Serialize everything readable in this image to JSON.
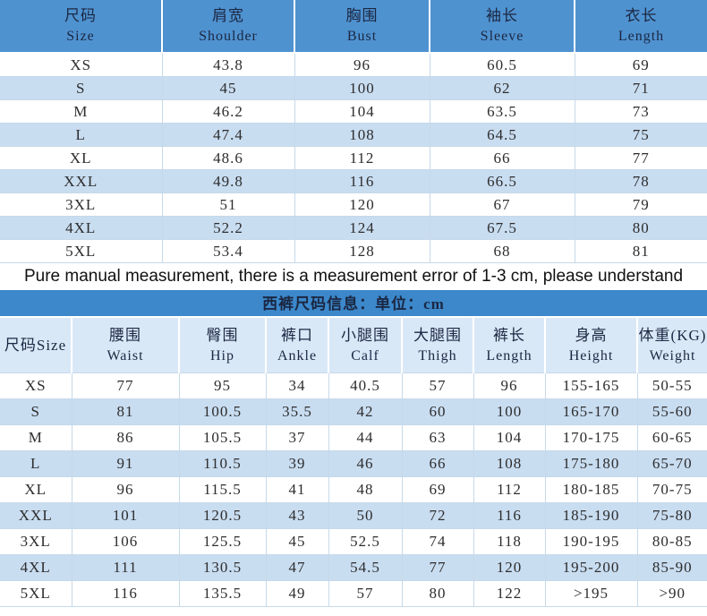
{
  "colors": {
    "header_blue": "#4f92d0",
    "row_alt_blue": "#c9ddf1",
    "title_band_blue": "#3c88cb",
    "pants_header_bg": "#d9e8f7",
    "grid_line": "#c6d9ea",
    "header_text": "#1b2742",
    "data_text": "#2d2d2d"
  },
  "notice": "Pure manual measurement, there is a measurement error of 1-3 cm, please understand",
  "chart_data": [
    {
      "type": "table",
      "name": "jacket-size-chart",
      "columns": [
        {
          "zh": "尺码",
          "en": "Size"
        },
        {
          "zh": "肩宽",
          "en": "Shoulder"
        },
        {
          "zh": "胸围",
          "en": "Bust"
        },
        {
          "zh": "袖长",
          "en": "Sleeve"
        },
        {
          "zh": "衣长",
          "en": "Length"
        }
      ],
      "rows": [
        [
          "XS",
          "43.8",
          "96",
          "60.5",
          "69"
        ],
        [
          "S",
          "45",
          "100",
          "62",
          "71"
        ],
        [
          "M",
          "46.2",
          "104",
          "63.5",
          "73"
        ],
        [
          "L",
          "47.4",
          "108",
          "64.5",
          "75"
        ],
        [
          "XL",
          "48.6",
          "112",
          "66",
          "77"
        ],
        [
          "XXL",
          "49.8",
          "116",
          "66.5",
          "78"
        ],
        [
          "3XL",
          "51",
          "120",
          "67",
          "79"
        ],
        [
          "4XL",
          "52.2",
          "124",
          "67.5",
          "80"
        ],
        [
          "5XL",
          "53.4",
          "128",
          "68",
          "81"
        ]
      ]
    },
    {
      "type": "table",
      "name": "trousers-size-chart",
      "title": "西裤尺码信息：单位：cm",
      "columns": [
        {
          "zh": "尺码Size",
          "en": ""
        },
        {
          "zh": "腰围",
          "en": "Waist"
        },
        {
          "zh": "臀围",
          "en": "Hip"
        },
        {
          "zh": "裤口",
          "en": "Ankle"
        },
        {
          "zh": "小腿围",
          "en": "Calf"
        },
        {
          "zh": "大腿围",
          "en": "Thigh"
        },
        {
          "zh": "裤长",
          "en": "Length"
        },
        {
          "zh": "身高",
          "en": "Height"
        },
        {
          "zh": "体重(KG)",
          "en": "Weight"
        }
      ],
      "rows": [
        [
          "XS",
          "77",
          "95",
          "34",
          "40.5",
          "57",
          "96",
          "155-165",
          "50-55"
        ],
        [
          "S",
          "81",
          "100.5",
          "35.5",
          "42",
          "60",
          "100",
          "165-170",
          "55-60"
        ],
        [
          "M",
          "86",
          "105.5",
          "37",
          "44",
          "63",
          "104",
          "170-175",
          "60-65"
        ],
        [
          "L",
          "91",
          "110.5",
          "39",
          "46",
          "66",
          "108",
          "175-180",
          "65-70"
        ],
        [
          "XL",
          "96",
          "115.5",
          "41",
          "48",
          "69",
          "112",
          "180-185",
          "70-75"
        ],
        [
          "XXL",
          "101",
          "120.5",
          "43",
          "50",
          "72",
          "116",
          "185-190",
          "75-80"
        ],
        [
          "3XL",
          "106",
          "125.5",
          "45",
          "52.5",
          "74",
          "118",
          "190-195",
          "80-85"
        ],
        [
          "4XL",
          "111",
          "130.5",
          "47",
          "54.5",
          "77",
          "120",
          "195-200",
          "85-90"
        ],
        [
          "5XL",
          "116",
          "135.5",
          "49",
          "57",
          "80",
          "122",
          ">195",
          ">90"
        ]
      ]
    }
  ]
}
